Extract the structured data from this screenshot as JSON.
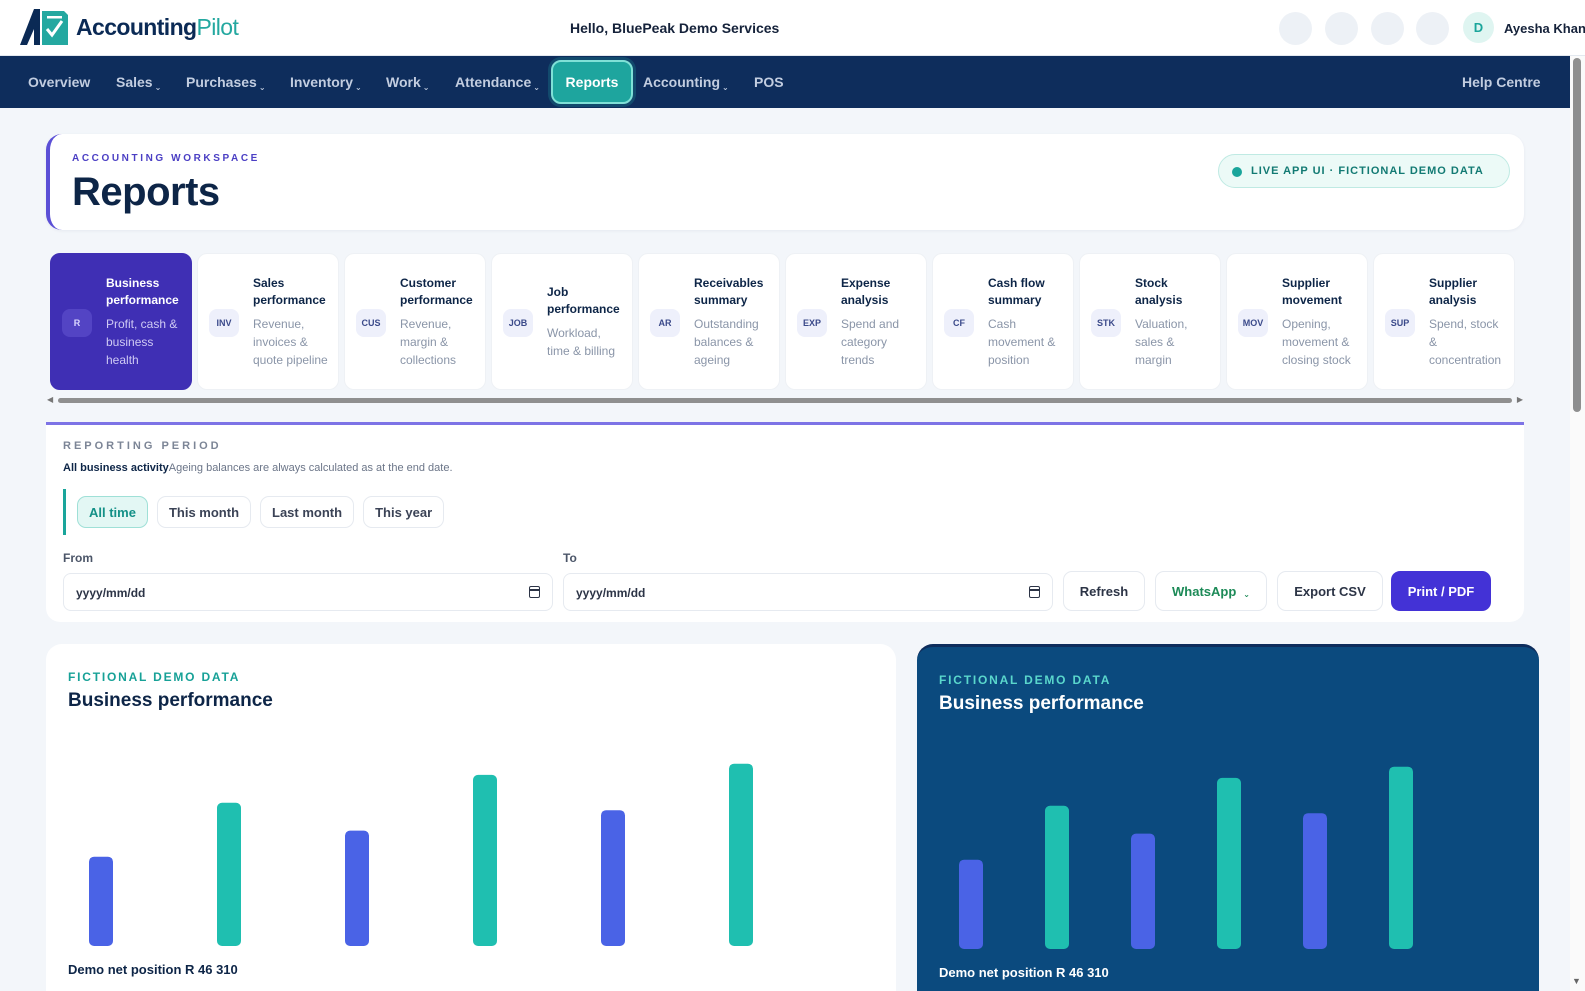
{
  "header": {
    "logo_part1": "Accounting",
    "logo_part2": "Pilot",
    "greeting": "Hello, BluePeak Demo Services",
    "avatar_initial": "D",
    "user_name": "Ayesha Khan"
  },
  "nav": {
    "items": [
      {
        "label": "Overview",
        "caret": ""
      },
      {
        "label": "Sales",
        "caret": "⌄"
      },
      {
        "label": "Purchases",
        "caret": "⌄"
      },
      {
        "label": "Inventory",
        "caret": "⌄"
      },
      {
        "label": "Work",
        "caret": "⌄"
      },
      {
        "label": "Attendance",
        "caret": "⌄"
      },
      {
        "label": "Reports",
        "caret": ""
      },
      {
        "label": "Accounting",
        "caret": "⌄"
      },
      {
        "label": "POS",
        "caret": ""
      }
    ],
    "help": "Help Centre"
  },
  "title_card": {
    "eyebrow": "ACCOUNTING WORKSPACE",
    "title": "Reports",
    "badge": "LIVE APP UI · FICTIONAL DEMO DATA"
  },
  "tiles": [
    {
      "code": "R",
      "title": "Business performance",
      "desc": "Profit, cash & business health",
      "active": true
    },
    {
      "code": "INV",
      "title": "Sales performance",
      "desc": "Revenue, invoices & quote pipeline",
      "active": false
    },
    {
      "code": "CUS",
      "title": "Customer performance",
      "desc": "Revenue, margin & collections",
      "active": false
    },
    {
      "code": "JOB",
      "title": "Job performance",
      "desc": "Workload, time & billing",
      "active": false
    },
    {
      "code": "AR",
      "title": "Receivables summary",
      "desc": "Outstanding balances & ageing",
      "active": false
    },
    {
      "code": "EXP",
      "title": "Expense analysis",
      "desc": "Spend and category trends",
      "active": false
    },
    {
      "code": "CF",
      "title": "Cash flow summary",
      "desc": "Cash movement & position",
      "active": false
    },
    {
      "code": "STK",
      "title": "Stock analysis",
      "desc": "Valuation, sales & margin",
      "active": false
    },
    {
      "code": "MOV",
      "title": "Supplier movement",
      "desc": "Opening, movement & closing stock",
      "active": false
    },
    {
      "code": "SUP",
      "title": "Supplier analysis",
      "desc": "Spend, stock & concentration",
      "active": false
    }
  ],
  "period": {
    "eyebrow": "REPORTING PERIOD",
    "scope": "All business activity",
    "note": "Ageing balances are always calculated as at the end date.",
    "chips": [
      {
        "label": "All time",
        "active": true
      },
      {
        "label": "This month",
        "active": false
      },
      {
        "label": "Last month",
        "active": false
      },
      {
        "label": "This year",
        "active": false
      }
    ],
    "from_label": "From",
    "to_label": "To",
    "from_value": "yyyy/mm/dd",
    "to_value": "yyyy/mm/dd",
    "buttons": {
      "refresh": "Refresh",
      "whatsapp": "WhatsApp",
      "export": "Export CSV",
      "print": "Print / PDF"
    }
  },
  "colors": {
    "navy": "#0e2d5c",
    "teal": "#1ea59e",
    "indigo": "#4332d6",
    "bar_blue": "#4a63e6",
    "bar_teal": "#1fbfb0"
  },
  "chart_cards": [
    {
      "eyebrow": "FICTIONAL DEMO DATA",
      "title": "Business performance",
      "footer": "Demo net position R 46 310"
    },
    {
      "eyebrow": "FICTIONAL DEMO DATA",
      "title": "Business performance",
      "footer": "Demo net position R 46 310"
    }
  ],
  "chart_data": [
    {
      "type": "bar",
      "title": "Business performance",
      "categories": [
        "",
        "",
        "",
        "",
        "",
        ""
      ],
      "values": [
        48,
        77,
        62,
        92,
        73,
        98
      ],
      "colors": [
        "#4a63e6",
        "#1fbfb0",
        "#4a63e6",
        "#1fbfb0",
        "#4a63e6",
        "#1fbfb0"
      ],
      "ylim": [
        0,
        100
      ],
      "grid": false
    },
    {
      "type": "bar",
      "title": "Business performance",
      "categories": [
        "",
        "",
        "",
        "",
        "",
        ""
      ],
      "values": [
        48,
        77,
        62,
        92,
        73,
        98
      ],
      "colors": [
        "#4a63e6",
        "#1fbfb0",
        "#4a63e6",
        "#1fbfb0",
        "#4a63e6",
        "#1fbfb0"
      ],
      "ylim": [
        0,
        100
      ],
      "grid": false
    }
  ]
}
